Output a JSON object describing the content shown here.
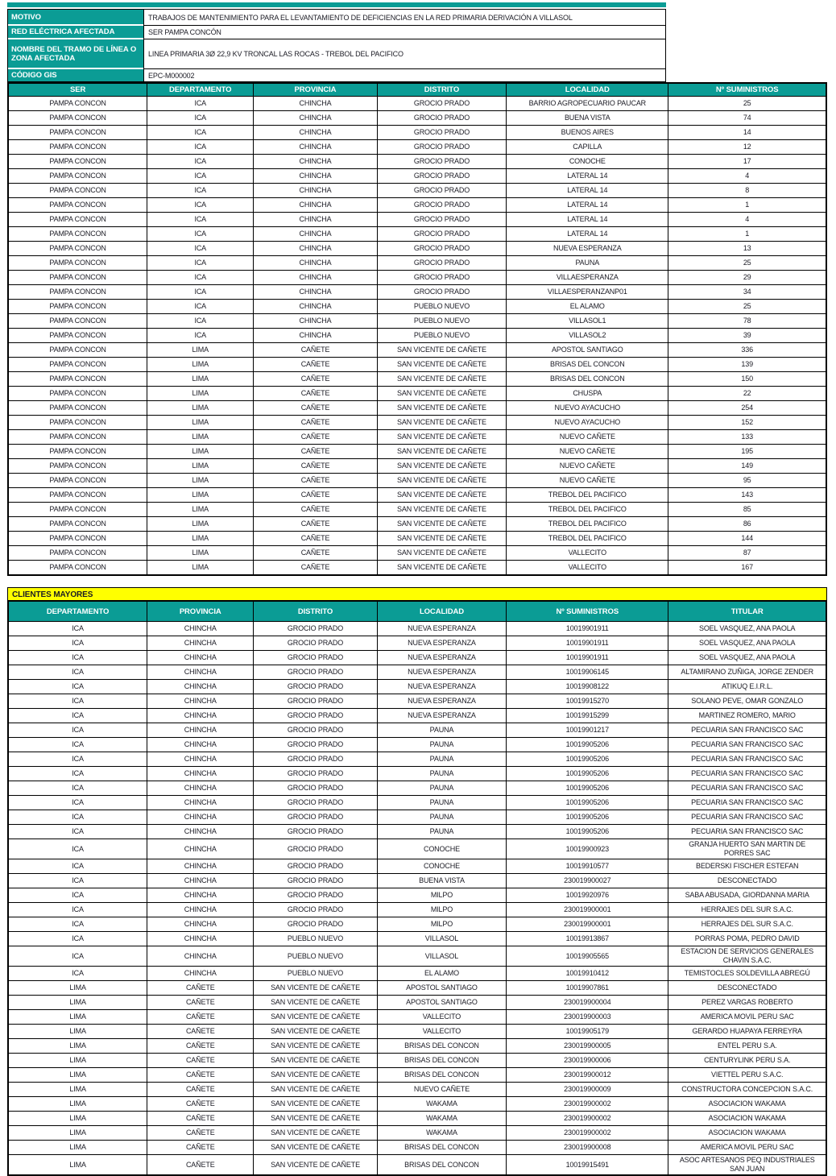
{
  "colors": {
    "teal": "#0B9C95",
    "yellow": "#FFFF00",
    "text": "#1B1B24"
  },
  "info": {
    "rows": [
      {
        "label": "MOTIVO",
        "value": "TRABAJOS DE MANTENIMIENTO PARA EL LEVANTAMIENTO DE DEFICIENCIAS EN LA RED PRIMARIA DERIVACIÓN A VILLASOL"
      },
      {
        "label": "RED ELÉCTRICA AFECTADA",
        "value": "SER PAMPA CONCÓN"
      },
      {
        "label": "NOMBRE DEL TRAMO DE LÍNEA O ZONA AFECTADA",
        "value": "LINEA PRIMARIA 3Ø 22,9 KV TRONCAL LAS ROCAS - TREBOL DEL PACIFICO"
      },
      {
        "label": "CÓDIGO GIS",
        "value": "EPC-M000002"
      }
    ]
  },
  "supplies_table": {
    "headers": [
      "SER",
      "DEPARTAMENTO",
      "PROVINCIA",
      "DISTRITO",
      "LOCALIDAD",
      "Nº SUMINISTROS"
    ],
    "rows": [
      [
        "PAMPA CONCON",
        "ICA",
        "CHINCHA",
        "GROCIO PRADO",
        "BARRIO AGROPECUARIO PAUCAR",
        "25"
      ],
      [
        "PAMPA CONCON",
        "ICA",
        "CHINCHA",
        "GROCIO PRADO",
        "BUENA VISTA",
        "74"
      ],
      [
        "PAMPA CONCON",
        "ICA",
        "CHINCHA",
        "GROCIO PRADO",
        "BUENOS AIRES",
        "14"
      ],
      [
        "PAMPA CONCON",
        "ICA",
        "CHINCHA",
        "GROCIO PRADO",
        "CAPILLA",
        "12"
      ],
      [
        "PAMPA CONCON",
        "ICA",
        "CHINCHA",
        "GROCIO PRADO",
        "CONOCHE",
        "17"
      ],
      [
        "PAMPA CONCON",
        "ICA",
        "CHINCHA",
        "GROCIO PRADO",
        "LATERAL 14",
        "4"
      ],
      [
        "PAMPA CONCON",
        "ICA",
        "CHINCHA",
        "GROCIO PRADO",
        "LATERAL 14",
        "8"
      ],
      [
        "PAMPA CONCON",
        "ICA",
        "CHINCHA",
        "GROCIO PRADO",
        "LATERAL 14",
        "1"
      ],
      [
        "PAMPA CONCON",
        "ICA",
        "CHINCHA",
        "GROCIO PRADO",
        "LATERAL 14",
        "4"
      ],
      [
        "PAMPA CONCON",
        "ICA",
        "CHINCHA",
        "GROCIO PRADO",
        "LATERAL 14",
        "1"
      ],
      [
        "PAMPA CONCON",
        "ICA",
        "CHINCHA",
        "GROCIO PRADO",
        "NUEVA ESPERANZA",
        "13"
      ],
      [
        "PAMPA CONCON",
        "ICA",
        "CHINCHA",
        "GROCIO PRADO",
        "PAUNA",
        "25"
      ],
      [
        "PAMPA CONCON",
        "ICA",
        "CHINCHA",
        "GROCIO PRADO",
        "VILLAESPERANZA",
        "29"
      ],
      [
        "PAMPA CONCON",
        "ICA",
        "CHINCHA",
        "GROCIO PRADO",
        "VILLAESPERANZANP01",
        "34"
      ],
      [
        "PAMPA CONCON",
        "ICA",
        "CHINCHA",
        "PUEBLO NUEVO",
        "EL ALAMO",
        "25"
      ],
      [
        "PAMPA CONCON",
        "ICA",
        "CHINCHA",
        "PUEBLO NUEVO",
        "VILLASOL1",
        "78"
      ],
      [
        "PAMPA CONCON",
        "ICA",
        "CHINCHA",
        "PUEBLO NUEVO",
        "VILLASOL2",
        "39"
      ],
      [
        "PAMPA CONCON",
        "LIMA",
        "CAÑETE",
        "SAN VICENTE DE CAÑETE",
        "APOSTOL SANTIAGO",
        "336"
      ],
      [
        "PAMPA CONCON",
        "LIMA",
        "CAÑETE",
        "SAN VICENTE DE CAÑETE",
        "BRISAS DEL CONCON",
        "139"
      ],
      [
        "PAMPA CONCON",
        "LIMA",
        "CAÑETE",
        "SAN VICENTE DE CAÑETE",
        "BRISAS DEL CONCON",
        "150"
      ],
      [
        "PAMPA CONCON",
        "LIMA",
        "CAÑETE",
        "SAN VICENTE DE CAÑETE",
        "CHUSPA",
        "22"
      ],
      [
        "PAMPA CONCON",
        "LIMA",
        "CAÑETE",
        "SAN VICENTE DE CAÑETE",
        "NUEVO AYACUCHO",
        "254"
      ],
      [
        "PAMPA CONCON",
        "LIMA",
        "CAÑETE",
        "SAN VICENTE DE CAÑETE",
        "NUEVO AYACUCHO",
        "152"
      ],
      [
        "PAMPA CONCON",
        "LIMA",
        "CAÑETE",
        "SAN VICENTE DE CAÑETE",
        "NUEVO CAÑETE",
        "133"
      ],
      [
        "PAMPA CONCON",
        "LIMA",
        "CAÑETE",
        "SAN VICENTE DE CAÑETE",
        "NUEVO CAÑETE",
        "195"
      ],
      [
        "PAMPA CONCON",
        "LIMA",
        "CAÑETE",
        "SAN VICENTE DE CAÑETE",
        "NUEVO CAÑETE",
        "149"
      ],
      [
        "PAMPA CONCON",
        "LIMA",
        "CAÑETE",
        "SAN VICENTE DE CAÑETE",
        "NUEVO CAÑETE",
        "95"
      ],
      [
        "PAMPA CONCON",
        "LIMA",
        "CAÑETE",
        "SAN VICENTE DE CAÑETE",
        "TREBOL DEL PACIFICO",
        "143"
      ],
      [
        "PAMPA CONCON",
        "LIMA",
        "CAÑETE",
        "SAN VICENTE DE CAÑETE",
        "TREBOL DEL PACIFICO",
        "85"
      ],
      [
        "PAMPA CONCON",
        "LIMA",
        "CAÑETE",
        "SAN VICENTE DE CAÑETE",
        "TREBOL DEL PACIFICO",
        "86"
      ],
      [
        "PAMPA CONCON",
        "LIMA",
        "CAÑETE",
        "SAN VICENTE DE CAÑETE",
        "TREBOL DEL PACIFICO",
        "144"
      ],
      [
        "PAMPA CONCON",
        "LIMA",
        "CAÑETE",
        "SAN VICENTE DE CAÑETE",
        "VALLECITO",
        "87"
      ],
      [
        "PAMPA CONCON",
        "LIMA",
        "CAÑETE",
        "SAN VICENTE DE CAÑETE",
        "VALLECITO",
        "167"
      ]
    ]
  },
  "clientes_mayores": {
    "title": "CLIENTES MAYORES",
    "headers": [
      "DEPARTAMENTO",
      "PROVINCIA",
      "DISTRITO",
      "LOCALIDAD",
      "Nº SUMINISTROS",
      "TITULAR"
    ],
    "rows": [
      [
        "ICA",
        "CHINCHA",
        "GROCIO PRADO",
        "NUEVA ESPERANZA",
        "10019901911",
        "SOEL VASQUEZ, ANA PAOLA"
      ],
      [
        "ICA",
        "CHINCHA",
        "GROCIO PRADO",
        "NUEVA ESPERANZA",
        "10019901911",
        "SOEL VASQUEZ, ANA PAOLA"
      ],
      [
        "ICA",
        "CHINCHA",
        "GROCIO PRADO",
        "NUEVA ESPERANZA",
        "10019901911",
        "SOEL VASQUEZ, ANA PAOLA"
      ],
      [
        "ICA",
        "CHINCHA",
        "GROCIO PRADO",
        "NUEVA ESPERANZA",
        "10019906145",
        "ALTAMIRANO ZUÑIGA, JORGE ZENDER"
      ],
      [
        "ICA",
        "CHINCHA",
        "GROCIO PRADO",
        "NUEVA ESPERANZA",
        "10019908122",
        "ATIKUQ E.I.R.L."
      ],
      [
        "ICA",
        "CHINCHA",
        "GROCIO PRADO",
        "NUEVA ESPERANZA",
        "10019915270",
        "SOLANO PEVE, OMAR GONZALO"
      ],
      [
        "ICA",
        "CHINCHA",
        "GROCIO PRADO",
        "NUEVA ESPERANZA",
        "10019915299",
        "MARTINEZ ROMERO, MARIO"
      ],
      [
        "ICA",
        "CHINCHA",
        "GROCIO PRADO",
        "PAUNA",
        "10019901217",
        "PECUARIA SAN FRANCISCO SAC"
      ],
      [
        "ICA",
        "CHINCHA",
        "GROCIO PRADO",
        "PAUNA",
        "10019905206",
        "PECUARIA SAN FRANCISCO SAC"
      ],
      [
        "ICA",
        "CHINCHA",
        "GROCIO PRADO",
        "PAUNA",
        "10019905206",
        "PECUARIA SAN FRANCISCO SAC"
      ],
      [
        "ICA",
        "CHINCHA",
        "GROCIO PRADO",
        "PAUNA",
        "10019905206",
        "PECUARIA SAN FRANCISCO SAC"
      ],
      [
        "ICA",
        "CHINCHA",
        "GROCIO PRADO",
        "PAUNA",
        "10019905206",
        "PECUARIA SAN FRANCISCO SAC"
      ],
      [
        "ICA",
        "CHINCHA",
        "GROCIO PRADO",
        "PAUNA",
        "10019905206",
        "PECUARIA SAN FRANCISCO SAC"
      ],
      [
        "ICA",
        "CHINCHA",
        "GROCIO PRADO",
        "PAUNA",
        "10019905206",
        "PECUARIA SAN FRANCISCO SAC"
      ],
      [
        "ICA",
        "CHINCHA",
        "GROCIO PRADO",
        "PAUNA",
        "10019905206",
        "PECUARIA SAN FRANCISCO SAC"
      ],
      [
        "ICA",
        "CHINCHA",
        "GROCIO PRADO",
        "CONOCHE",
        "10019900923",
        "GRANJA HUERTO SAN MARTIN DE\nPORRES SAC"
      ],
      [
        "ICA",
        "CHINCHA",
        "GROCIO PRADO",
        "CONOCHE",
        "10019910577",
        "BEDERSKI FISCHER ESTEFAN"
      ],
      [
        "ICA",
        "CHINCHA",
        "GROCIO PRADO",
        "BUENA VISTA",
        "230019900027",
        "DESCONECTADO"
      ],
      [
        "ICA",
        "CHINCHA",
        "GROCIO PRADO",
        "MILPO",
        "10019920976",
        "SABA ABUSADA, GIORDANNA MARIA"
      ],
      [
        "ICA",
        "CHINCHA",
        "GROCIO PRADO",
        "MILPO",
        "230019900001",
        "HERRAJES DEL SUR S.A.C."
      ],
      [
        "ICA",
        "CHINCHA",
        "GROCIO PRADO",
        "MILPO",
        "230019900001",
        "HERRAJES DEL SUR S.A.C."
      ],
      [
        "ICA",
        "CHINCHA",
        "PUEBLO NUEVO",
        "VILLASOL",
        "10019913867",
        "PORRAS POMA, PEDRO DAVID"
      ],
      [
        "ICA",
        "CHINCHA",
        "PUEBLO NUEVO",
        "VILLASOL",
        "10019905565",
        "ESTACION DE SERVICIOS GENERALES\nCHAVIN S.A.C."
      ],
      [
        "ICA",
        "CHINCHA",
        "PUEBLO NUEVO",
        "EL ALAMO",
        "10019910412",
        "TEMISTOCLES SOLDEVILLA ABREGÚ"
      ],
      [
        "LIMA",
        "CAÑETE",
        "SAN VICENTE DE CAÑETE",
        "APOSTOL SANTIAGO",
        "10019907861",
        "DESCONECTADO"
      ],
      [
        "LIMA",
        "CAÑETE",
        "SAN VICENTE DE CAÑETE",
        "APOSTOL SANTIAGO",
        "230019900004",
        "PEREZ VARGAS ROBERTO"
      ],
      [
        "LIMA",
        "CAÑETE",
        "SAN VICENTE DE CAÑETE",
        "VALLECITO",
        "230019900003",
        "AMERICA MOVIL PERU SAC"
      ],
      [
        "LIMA",
        "CAÑETE",
        "SAN VICENTE DE CAÑETE",
        "VALLECITO",
        "10019905179",
        "GERARDO HUAPAYA FERREYRA"
      ],
      [
        "LIMA",
        "CAÑETE",
        "SAN VICENTE DE CAÑETE",
        "BRISAS DEL CONCON",
        "230019900005",
        "ENTEL PERU S.A."
      ],
      [
        "LIMA",
        "CAÑETE",
        "SAN VICENTE DE CAÑETE",
        "BRISAS DEL CONCON",
        "230019900006",
        "CENTURYLINK PERU S.A."
      ],
      [
        "LIMA",
        "CAÑETE",
        "SAN VICENTE DE CAÑETE",
        "BRISAS DEL CONCON",
        "230019900012",
        "VIETTEL PERU S.A.C."
      ],
      [
        "LIMA",
        "CAÑETE",
        "SAN VICENTE DE CAÑETE",
        "NUEVO CAÑETE",
        "230019900009",
        "CONSTRUCTORA CONCEPCION S.A.C."
      ],
      [
        "LIMA",
        "CAÑETE",
        "SAN VICENTE DE CAÑETE",
        "WAKAMA",
        "230019900002",
        "ASOCIACION WAKAMA"
      ],
      [
        "LIMA",
        "CAÑETE",
        "SAN VICENTE DE CAÑETE",
        "WAKAMA",
        "230019900002",
        "ASOCIACION WAKAMA"
      ],
      [
        "LIMA",
        "CAÑETE",
        "SAN VICENTE DE CAÑETE",
        "WAKAMA",
        "230019900002",
        "ASOCIACION WAKAMA"
      ],
      [
        "LIMA",
        "CAÑETE",
        "SAN VICENTE DE CAÑETE",
        "BRISAS DEL CONCON",
        "230019900008",
        "AMERICA MOVIL PERU SAC"
      ],
      [
        "LIMA",
        "CAÑETE",
        "SAN VICENTE DE CAÑETE",
        "BRISAS DEL CONCON",
        "10019915491",
        "ASOC ARTESANOS PEQ INDUSTRIALES\nSAN JUAN"
      ]
    ]
  }
}
